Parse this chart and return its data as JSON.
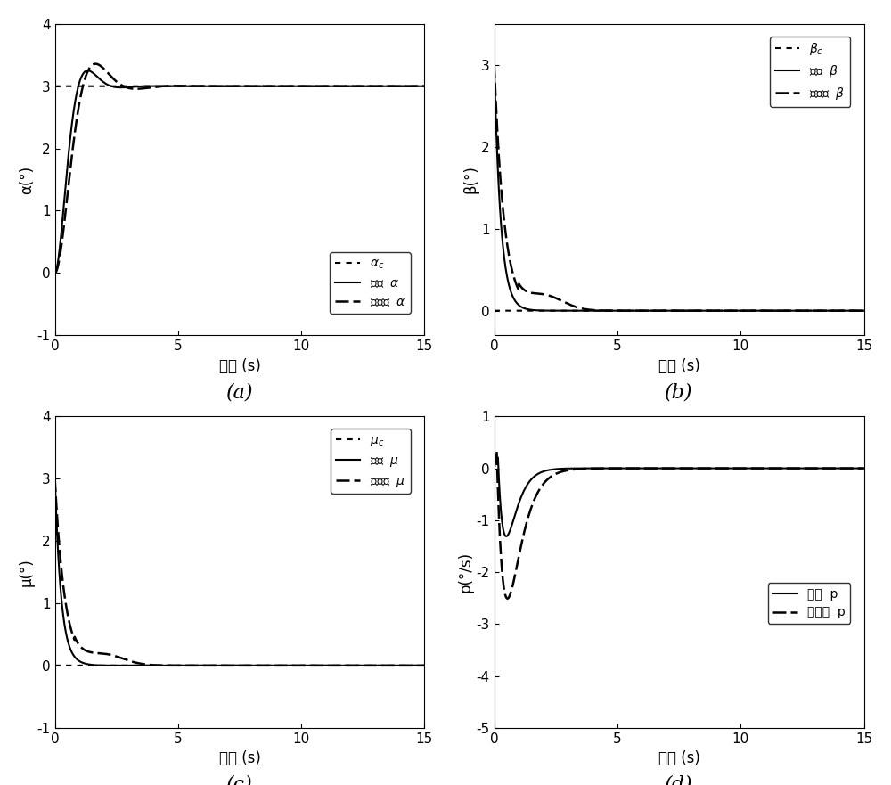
{
  "xlim": [
    0,
    15
  ],
  "xlabel": "时间 (s)",
  "ax_a": {
    "ylim": [
      -1,
      4
    ],
    "yticks": [
      -1,
      0,
      1,
      2,
      3,
      4
    ],
    "ylabel": "α(°)",
    "label": "(a)"
  },
  "ax_b": {
    "ylim": [
      -0.3,
      3.5
    ],
    "yticks": [
      0,
      1,
      2,
      3
    ],
    "ylabel": "β(°)",
    "label": "(b)"
  },
  "ax_c": {
    "ylim": [
      -1,
      4
    ],
    "yticks": [
      -1,
      0,
      1,
      2,
      3,
      4
    ],
    "ylabel": "μ(°)",
    "label": "(c)"
  },
  "ax_d": {
    "ylim": [
      -5,
      1
    ],
    "yticks": [
      -5,
      -4,
      -3,
      -2,
      -1,
      0,
      1
    ],
    "ylabel": "p(°/s)",
    "label": "(d)"
  },
  "line_color": "#000000",
  "line_width": 1.5,
  "label_fontsize": 12,
  "tick_fontsize": 11,
  "legend_fontsize": 10,
  "sublabel_fontsize": 16
}
